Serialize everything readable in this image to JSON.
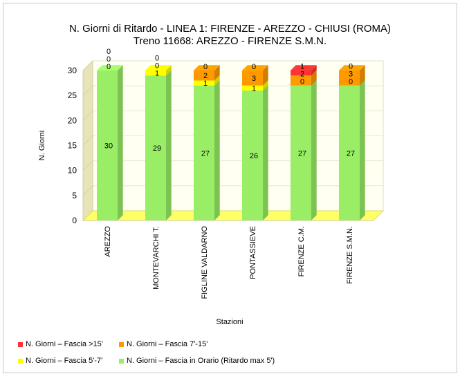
{
  "chart_data": {
    "type": "bar",
    "stacked": true,
    "three_d": true,
    "title": "N. Giorni di Ritardo - LINEA 1: FIRENZE - AREZZO - CHIUSI (ROMA)",
    "subtitle": "Treno 11668: AREZZO - FIRENZE S.M.N.",
    "xlabel": "Stazioni",
    "ylabel": "N. Giorni",
    "ylim": [
      0,
      30
    ],
    "yticks": [
      "0",
      "5",
      "10",
      "15",
      "20",
      "25",
      "30"
    ],
    "categories": [
      "AREZZO",
      "MONTEVARCHI T.",
      "FIGLINE VALDARNO",
      "PONTASSIEVE",
      "FIRENZE C.M.",
      "FIRENZE S.M.N."
    ],
    "series": [
      {
        "name": "N. Giorni – Fascia in Orario (Ritardo max 5')",
        "color": "#99ee66",
        "values": [
          30,
          29,
          27,
          26,
          27,
          27
        ]
      },
      {
        "name": "N. Giorni – Fascia 5'-7'",
        "color": "#ffff00",
        "values": [
          0,
          1,
          1,
          1,
          0,
          0
        ]
      },
      {
        "name": "N. Giorni – Fascia 7'-15'",
        "color": "#ff9900",
        "values": [
          0,
          0,
          2,
          3,
          2,
          3
        ]
      },
      {
        "name": "N. Giorni – Fascia >15'",
        "color": "#ff3333",
        "values": [
          0,
          0,
          0,
          0,
          1,
          0
        ]
      }
    ],
    "grid": true,
    "legend_position": "bottom-left"
  }
}
